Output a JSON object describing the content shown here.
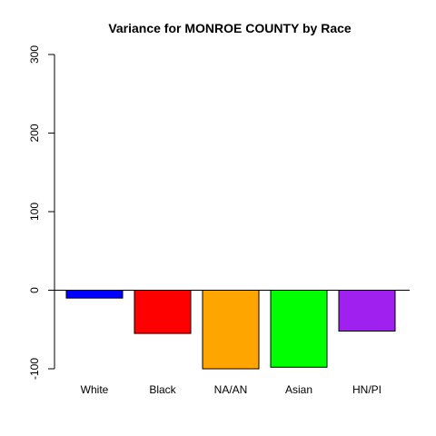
{
  "chart_data": {
    "type": "bar",
    "title": "Variance for MONROE COUNTY by Race",
    "xlabel": "",
    "ylabel": "",
    "categories": [
      "White",
      "Black",
      "NA/AN",
      "Asian",
      "HN/PI"
    ],
    "values": [
      -10,
      -55,
      -100,
      -98,
      -52
    ],
    "colors": [
      "#0000ff",
      "#ff0000",
      "#ffa500",
      "#00ff00",
      "#a020f0"
    ],
    "ylim": [
      -100,
      300
    ],
    "yticks": [
      -100,
      0,
      100,
      200,
      300
    ],
    "ytick_labels": [
      "-100",
      "0",
      "100",
      "200",
      "300"
    ],
    "zero_line": true,
    "grid": false
  }
}
